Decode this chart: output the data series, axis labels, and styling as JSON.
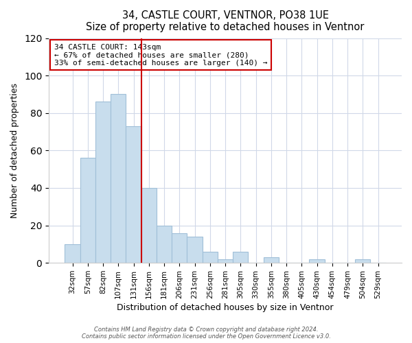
{
  "title": "34, CASTLE COURT, VENTNOR, PO38 1UE",
  "subtitle": "Size of property relative to detached houses in Ventnor",
  "xlabel": "Distribution of detached houses by size in Ventnor",
  "ylabel": "Number of detached properties",
  "bar_labels": [
    "32sqm",
    "57sqm",
    "82sqm",
    "107sqm",
    "131sqm",
    "156sqm",
    "181sqm",
    "206sqm",
    "231sqm",
    "256sqm",
    "281sqm",
    "305sqm",
    "330sqm",
    "355sqm",
    "380sqm",
    "405sqm",
    "430sqm",
    "454sqm",
    "479sqm",
    "504sqm",
    "529sqm"
  ],
  "bar_heights": [
    10,
    56,
    86,
    90,
    73,
    40,
    20,
    16,
    14,
    6,
    2,
    6,
    0,
    3,
    0,
    0,
    2,
    0,
    0,
    2,
    0
  ],
  "bar_color": "#c8dded",
  "bar_edge_color": "#a0bfd8",
  "vline_x_index": 4.5,
  "vline_color": "#cc0000",
  "ylim": [
    0,
    120
  ],
  "yticks": [
    0,
    20,
    40,
    60,
    80,
    100,
    120
  ],
  "annotation_title": "34 CASTLE COURT: 143sqm",
  "annotation_line1": "← 67% of detached houses are smaller (280)",
  "annotation_line2": "33% of semi-detached houses are larger (140) →",
  "annotation_box_color": "#ffffff",
  "annotation_box_edge": "#cc0000",
  "footer1": "Contains HM Land Registry data © Crown copyright and database right 2024.",
  "footer2": "Contains public sector information licensed under the Open Government Licence v3.0.",
  "background_color": "#ffffff",
  "plot_background": "#ffffff",
  "grid_color": "#d0d8e8"
}
